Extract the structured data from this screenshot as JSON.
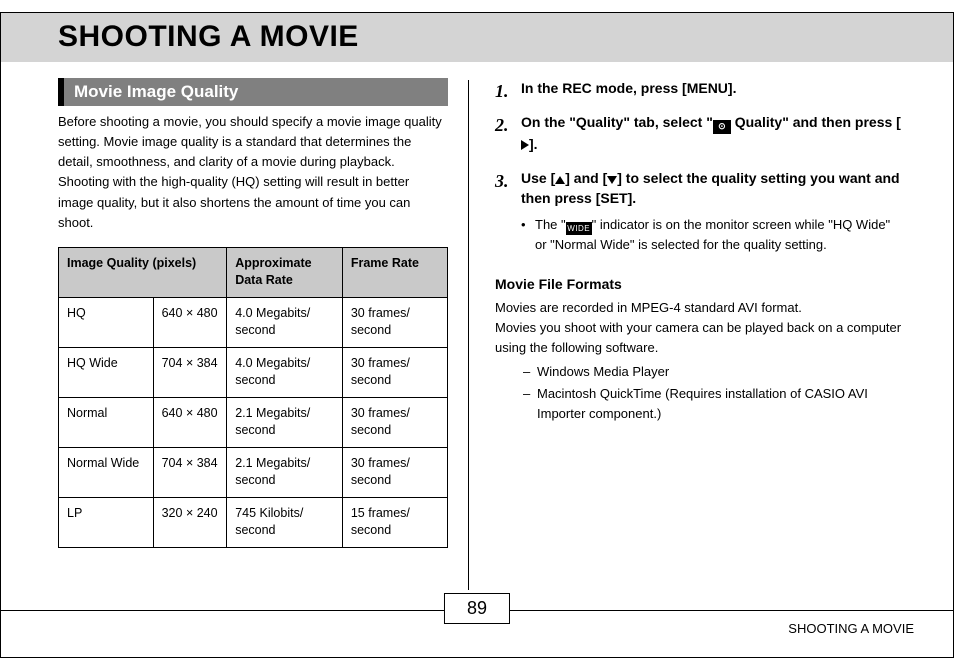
{
  "title": "SHOOTING A MOVIE",
  "section_header": "Movie Image Quality",
  "intro_text": "Before shooting a movie, you should specify a movie image quality setting. Movie image quality is a standard that determines the detail, smoothness, and clarity of a movie during playback. Shooting with the high-quality (HQ) setting will result in better image quality, but it also shortens the amount of time you can shoot.",
  "table": {
    "headers": [
      "Image Quality (pixels)",
      "Approximate Data Rate",
      "Frame Rate"
    ],
    "rows": [
      [
        "HQ",
        "640 × 480",
        "4.0 Megabits/\nsecond",
        "30 frames/\nsecond"
      ],
      [
        "HQ Wide",
        "704 × 384",
        "4.0 Megabits/\nsecond",
        "30 frames/\nsecond"
      ],
      [
        "Normal",
        "640 × 480",
        "2.1 Megabits/\nsecond",
        "30 frames/\nsecond"
      ],
      [
        "Normal Wide",
        "704 × 384",
        "2.1 Megabits/\nsecond",
        "30 frames/\nsecond"
      ],
      [
        "LP",
        "320 × 240",
        "745 Kilobits/\nsecond",
        "15 frames/\nsecond"
      ]
    ],
    "col_widths": [
      "90px",
      "70px",
      "110px",
      "100px"
    ]
  },
  "steps": {
    "s1": "In the REC mode, press [MENU].",
    "s2a": "On the \"Quality\" tab, select \"",
    "s2b": " Quality\" and then press [",
    "s2c": "].",
    "s3a": "Use [",
    "s3b": "] and [",
    "s3c": "] to select the quality setting you want and then press [SET].",
    "note_a": "The \"",
    "note_b": "\" indicator is on the monitor screen while \"HQ Wide\" or \"Normal Wide\" is selected for the quality setting."
  },
  "formats": {
    "heading": "Movie File Formats",
    "line1": "Movies are recorded in MPEG-4 standard AVI format.",
    "line2": "Movies you shoot with your camera can be played back on a computer using the following software.",
    "items": [
      "Windows Media Player",
      "Macintosh QuickTime (Requires installation of CASIO AVI Importer component.)"
    ]
  },
  "page_number": "89",
  "footer_label": "SHOOTING A MOVIE",
  "icons": {
    "movie_label": "⊙",
    "wide_label": "WIDE"
  }
}
